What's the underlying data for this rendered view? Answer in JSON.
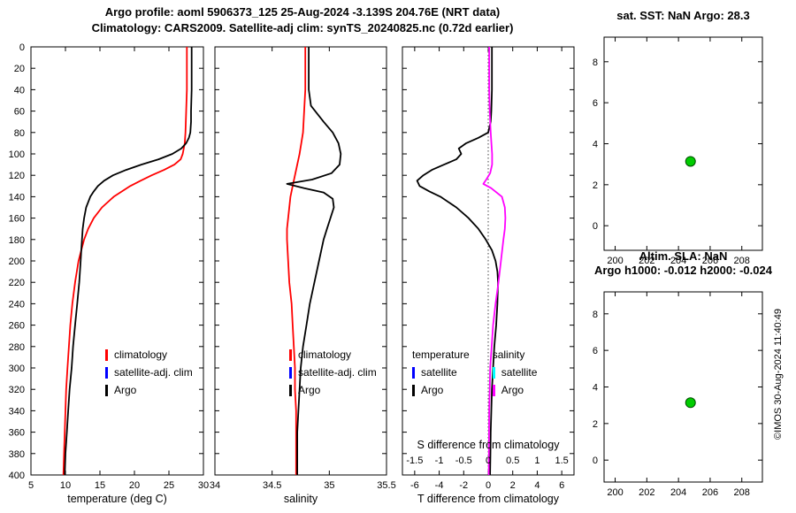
{
  "header": {
    "title_line1": "Argo profile: aoml 5906373_125 25-Aug-2024 -3.139S 204.76E (NRT data)",
    "title_line2": "Climatology: CARS2009. Satellite-adj clim: synTS_20240825.nc (0.72d earlier)"
  },
  "copyright": "©IMOS 30-Aug-2024 11:40:49",
  "chart_data": [
    {
      "id": "temperature_profile",
      "type": "line",
      "xlabel": "temperature (deg C)",
      "xlim": [
        5,
        30
      ],
      "xticks": [
        5,
        10,
        15,
        20,
        25,
        30
      ],
      "xticklabels": [
        "5",
        "10",
        "15",
        "20",
        "25",
        "30"
      ],
      "ylim": [
        0,
        400
      ],
      "y_direction": "down",
      "yticks": [
        0,
        20,
        40,
        60,
        80,
        100,
        120,
        140,
        160,
        180,
        200,
        220,
        240,
        260,
        280,
        300,
        320,
        340,
        360,
        380,
        400
      ],
      "yticklabels": [
        "0",
        "20",
        "40",
        "60",
        "80",
        "100",
        "120",
        "140",
        "160",
        "180",
        "200",
        "220",
        "240",
        "260",
        "280",
        "300",
        "320",
        "340",
        "360",
        "380",
        "400"
      ],
      "legend": {
        "items": [
          {
            "label": "climatology",
            "color": "#ff0000"
          },
          {
            "label": "satellite-adj. clim",
            "color": "#0000ff"
          },
          {
            "label": "Argo",
            "color": "#000000"
          }
        ]
      },
      "series": [
        {
          "name": "climatology",
          "color": "#ff0000",
          "depth": [
            0,
            20,
            40,
            60,
            80,
            90,
            100,
            105,
            110,
            115,
            120,
            125,
            130,
            140,
            150,
            160,
            170,
            180,
            190,
            200,
            220,
            240,
            260,
            280,
            300,
            320,
            340,
            360,
            380,
            400
          ],
          "values": [
            27.6,
            27.6,
            27.6,
            27.5,
            27.4,
            27.3,
            27.0,
            26.7,
            25.8,
            24.3,
            22.5,
            20.9,
            19.4,
            17.0,
            15.3,
            14.1,
            13.3,
            12.7,
            12.3,
            11.9,
            11.4,
            11.0,
            10.7,
            10.5,
            10.3,
            10.1,
            10.0,
            9.9,
            9.8,
            9.7
          ]
        },
        {
          "name": "Argo",
          "color": "#000000",
          "depth": [
            0,
            20,
            40,
            60,
            70,
            80,
            85,
            90,
            95,
            100,
            105,
            110,
            115,
            120,
            125,
            130,
            135,
            140,
            150,
            160,
            170,
            180,
            190,
            200,
            220,
            240,
            260,
            280,
            300,
            320,
            340,
            360,
            380,
            400
          ],
          "values": [
            28.3,
            28.3,
            28.3,
            28.2,
            28.2,
            28.1,
            27.9,
            27.5,
            26.8,
            25.5,
            23.5,
            21.0,
            18.8,
            16.9,
            15.6,
            14.7,
            14.1,
            13.6,
            13.0,
            12.7,
            12.5,
            12.4,
            12.3,
            12.2,
            12.0,
            11.7,
            11.4,
            11.1,
            10.9,
            10.6,
            10.4,
            10.2,
            10.0,
            9.9
          ]
        }
      ]
    },
    {
      "id": "salinity_profile",
      "type": "line",
      "xlabel": "salinity",
      "xlim": [
        34,
        35.5
      ],
      "xticks": [
        34,
        34.5,
        35,
        35.5
      ],
      "xticklabels": [
        "34",
        "34.5",
        "35",
        "35.5"
      ],
      "ylim": [
        0,
        400
      ],
      "y_direction": "down",
      "yticks": [
        0,
        20,
        40,
        60,
        80,
        100,
        120,
        140,
        160,
        180,
        200,
        220,
        240,
        260,
        280,
        300,
        320,
        340,
        360,
        380,
        400
      ],
      "yticklabels": null,
      "legend": {
        "items": [
          {
            "label": "climatology",
            "color": "#ff0000"
          },
          {
            "label": "satellite-adj. clim",
            "color": "#0000ff"
          },
          {
            "label": "Argo",
            "color": "#000000"
          }
        ]
      },
      "series": [
        {
          "name": "climatology",
          "color": "#ff0000",
          "depth": [
            0,
            20,
            40,
            60,
            80,
            100,
            110,
            120,
            130,
            140,
            150,
            160,
            170,
            180,
            200,
            220,
            240,
            260,
            280,
            300,
            320,
            340,
            360,
            380,
            400
          ],
          "values": [
            34.79,
            34.79,
            34.79,
            34.78,
            34.77,
            34.74,
            34.72,
            34.7,
            34.68,
            34.66,
            34.65,
            34.64,
            34.63,
            34.63,
            34.64,
            34.65,
            34.67,
            34.68,
            34.69,
            34.7,
            34.7,
            34.71,
            34.71,
            34.71,
            34.71
          ]
        },
        {
          "name": "Argo",
          "color": "#000000",
          "depth": [
            0,
            20,
            40,
            55,
            70,
            80,
            90,
            100,
            110,
            118,
            124,
            128,
            132,
            136,
            142,
            150,
            160,
            170,
            180,
            200,
            220,
            240,
            260,
            280,
            300,
            320,
            340,
            360,
            380,
            400
          ],
          "values": [
            34.82,
            34.82,
            34.82,
            34.84,
            34.95,
            35.03,
            35.08,
            35.1,
            35.09,
            35.02,
            34.85,
            34.63,
            34.78,
            34.95,
            35.03,
            35.04,
            35.01,
            34.98,
            34.95,
            34.91,
            34.87,
            34.83,
            34.8,
            34.77,
            34.75,
            34.74,
            34.73,
            34.72,
            34.72,
            34.72
          ]
        }
      ]
    },
    {
      "id": "tdiff_profile",
      "type": "line",
      "xlabel": "T difference from climatology",
      "xlim": [
        -7,
        7
      ],
      "xticks": [
        -6,
        -4,
        -2,
        0,
        2,
        4,
        6
      ],
      "xticklabels": [
        "-6",
        "-4",
        "-2",
        "0",
        "2",
        "4",
        "6"
      ],
      "ylim": [
        0,
        400
      ],
      "y_direction": "down",
      "yticks": [
        0,
        20,
        40,
        60,
        80,
        100,
        120,
        140,
        160,
        180,
        200,
        220,
        240,
        260,
        280,
        300,
        320,
        340,
        360,
        380,
        400
      ],
      "yticklabels": null,
      "zero_line": true,
      "s_axis": {
        "label": "S difference from climatology",
        "scale": 4,
        "ticks": [
          -1.5,
          -1,
          -0.5,
          0,
          0.5,
          1,
          1.5
        ],
        "labels": [
          "-1.5",
          "-1",
          "-0.5",
          "0",
          "0.5",
          "1",
          "1.5"
        ]
      },
      "legend": {
        "columns": [
          {
            "header": "temperature",
            "items": [
              {
                "label": "satellite",
                "color": "#0000ff"
              },
              {
                "label": "Argo",
                "color": "#000000"
              }
            ]
          },
          {
            "header": "salinity",
            "items": [
              {
                "label": "satellite",
                "color": "#00ffff"
              },
              {
                "label": "Argo",
                "color": "#ff00ff"
              }
            ]
          }
        ]
      },
      "series": [
        {
          "name": "t-difference-argo",
          "color": "#000000",
          "depth": [
            0,
            20,
            40,
            60,
            70,
            80,
            85,
            90,
            95,
            100,
            105,
            110,
            115,
            120,
            125,
            130,
            135,
            140,
            150,
            160,
            170,
            180,
            190,
            200,
            210,
            220,
            240,
            260,
            280,
            300,
            320,
            340,
            360,
            380,
            400
          ],
          "values": [
            0.3,
            0.3,
            0.3,
            0.25,
            0.2,
            0.0,
            -0.8,
            -1.8,
            -2.4,
            -2.2,
            -2.6,
            -3.6,
            -4.6,
            -5.3,
            -5.8,
            -5.6,
            -4.8,
            -3.9,
            -2.6,
            -1.6,
            -0.8,
            -0.2,
            0.3,
            0.6,
            0.75,
            0.8,
            0.75,
            0.65,
            0.5,
            0.4,
            0.3,
            0.25,
            0.2,
            0.18,
            0.15
          ]
        },
        {
          "name": "s-difference-argo",
          "color": "#ff00ff",
          "xlim": [
            -1.75,
            1.75
          ],
          "depth": [
            0,
            20,
            40,
            60,
            80,
            100,
            110,
            118,
            124,
            128,
            132,
            140,
            150,
            160,
            170,
            180,
            200,
            220,
            240,
            260,
            280,
            300,
            320,
            340,
            400
          ],
          "values": [
            0.02,
            0.02,
            0.02,
            0.03,
            0.05,
            0.08,
            0.08,
            0.04,
            -0.04,
            -0.1,
            0.06,
            0.28,
            0.34,
            0.35,
            0.34,
            0.31,
            0.26,
            0.21,
            0.15,
            0.1,
            0.07,
            0.04,
            0.03,
            0.02,
            0.01
          ]
        }
      ]
    },
    {
      "id": "sst_map",
      "type": "scatter",
      "title": [
        "sat. SST: NaN Argo: 28.3"
      ],
      "xlim": [
        199.3,
        209.3
      ],
      "xticks": [
        200,
        202,
        204,
        206,
        208
      ],
      "xticklabels": [
        "200",
        "202",
        "204",
        "206",
        "208"
      ],
      "ylim": [
        -1.2,
        9.2
      ],
      "y_direction": "up",
      "yticks": [
        0,
        2,
        4,
        6,
        8
      ],
      "yticklabels": [
        "0",
        "2",
        "4",
        "6",
        "8"
      ],
      "marker": {
        "fill": "#00cc00",
        "edge": "#004d00",
        "radius": 5.5
      },
      "points": [
        {
          "x": 204.76,
          "y": 3.139
        }
      ]
    },
    {
      "id": "sla_map",
      "type": "scatter",
      "title": [
        "Altim. SLA: NaN",
        "Argo h1000: -0.012 h2000: -0.024"
      ],
      "xlim": [
        199.3,
        209.3
      ],
      "xticks": [
        200,
        202,
        204,
        206,
        208
      ],
      "xticklabels": [
        "200",
        "202",
        "204",
        "206",
        "208"
      ],
      "ylim": [
        -1.2,
        9.2
      ],
      "y_direction": "up",
      "yticks": [
        0,
        2,
        4,
        6,
        8
      ],
      "yticklabels": [
        "0",
        "2",
        "4",
        "6",
        "8"
      ],
      "marker": {
        "fill": "#00cc00",
        "edge": "#004d00",
        "radius": 5.5
      },
      "points": [
        {
          "x": 204.76,
          "y": 3.139
        }
      ]
    }
  ]
}
